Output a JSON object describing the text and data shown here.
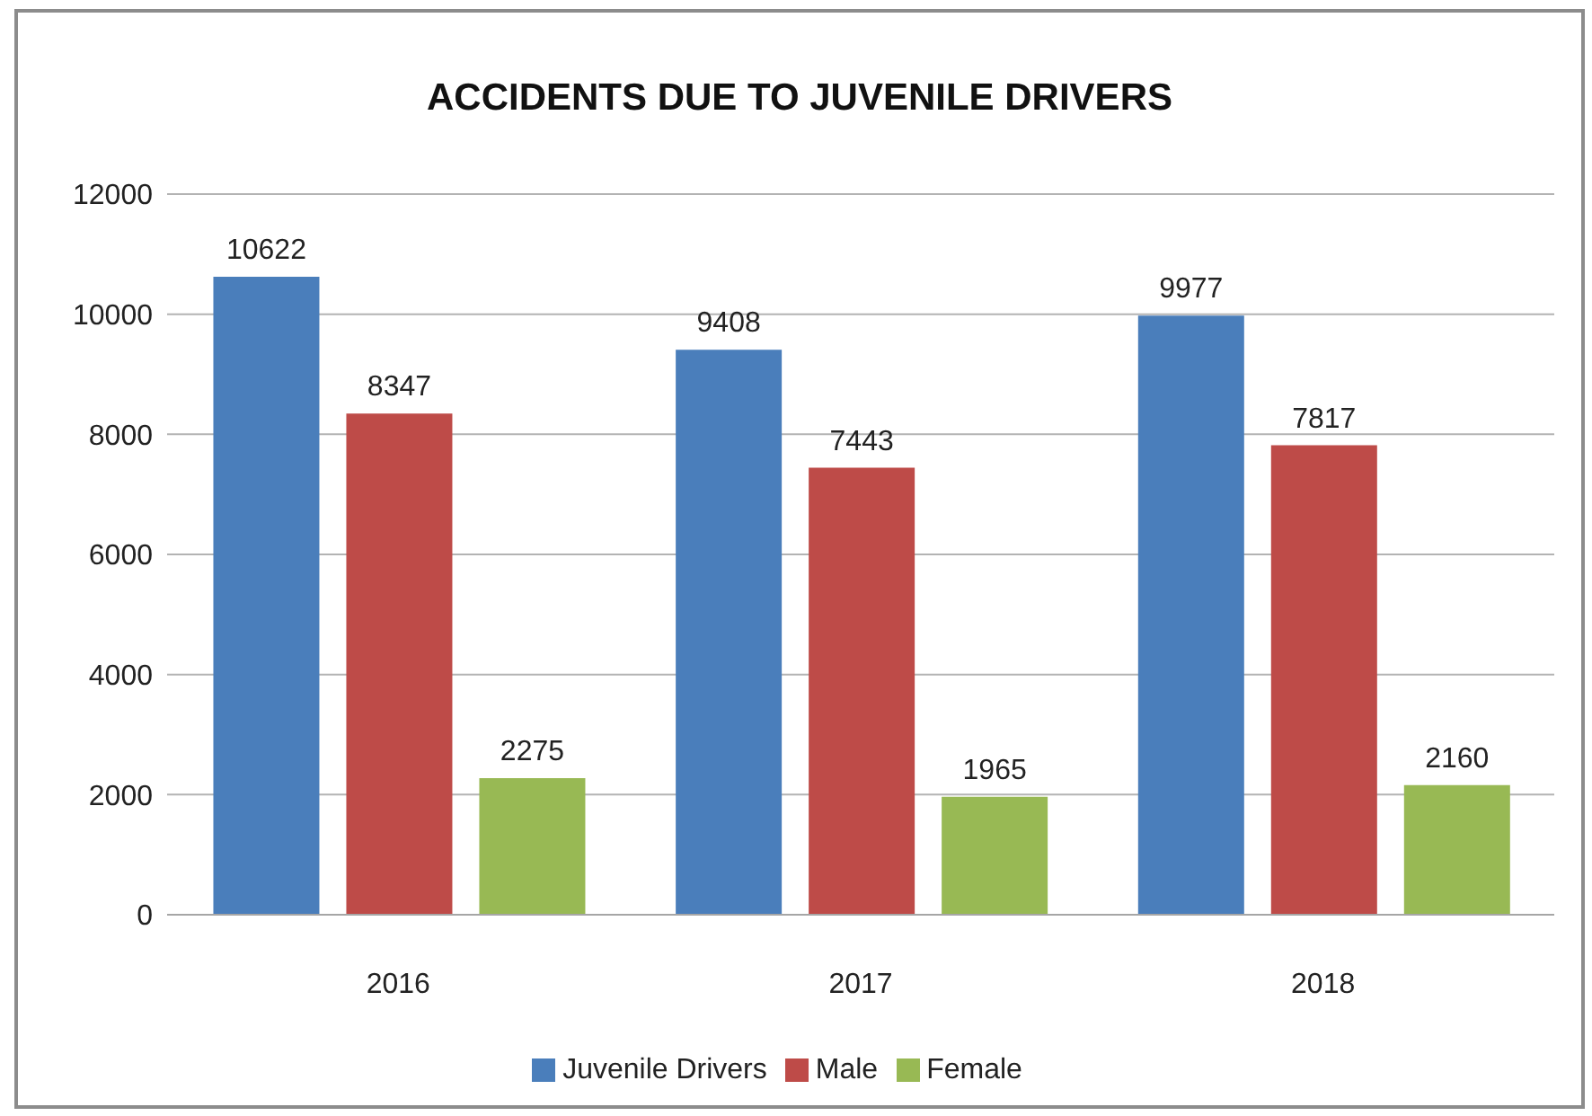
{
  "chart_data": {
    "type": "bar",
    "title": "ACCIDENTS DUE TO JUVENILE DRIVERS",
    "categories": [
      "2016",
      "2017",
      "2018"
    ],
    "series": [
      {
        "name": "Juvenile Drivers",
        "color": "#4a7ebb",
        "values": [
          10622,
          9408,
          9977
        ]
      },
      {
        "name": "Male",
        "color": "#be4b48",
        "values": [
          8347,
          7443,
          7817
        ]
      },
      {
        "name": "Female",
        "color": "#98b954",
        "values": [
          2275,
          1965,
          2160
        ]
      }
    ],
    "ylim": [
      0,
      12000
    ],
    "yticks": [
      0,
      2000,
      4000,
      6000,
      8000,
      10000,
      12000
    ],
    "grid": "y",
    "legend": "bottom",
    "data_labels": true
  }
}
